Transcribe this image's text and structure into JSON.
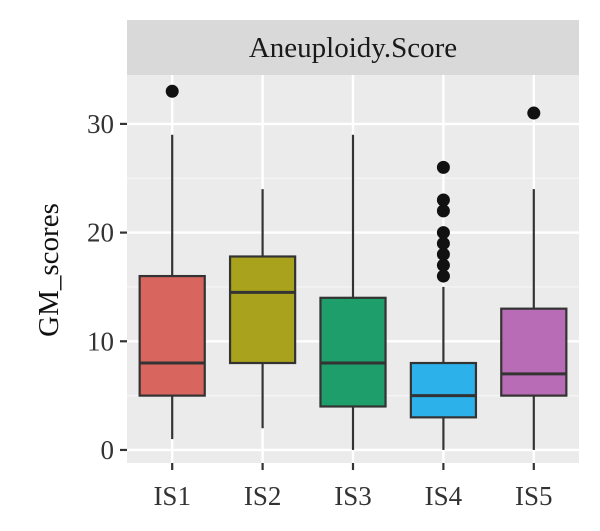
{
  "chart_data": {
    "type": "box",
    "facet_title": "Aneuploidy.Score",
    "ylabel": "GM_scores",
    "xlabel": "",
    "ylim": [
      -1.2,
      34.5
    ],
    "yticks": [
      0,
      10,
      20,
      30
    ],
    "grid": true,
    "categories": [
      "IS1",
      "IS2",
      "IS3",
      "IS4",
      "IS5"
    ],
    "colors": [
      "#D9665E",
      "#A8A21C",
      "#1E9E6A",
      "#2DB1EA",
      "#B86CB5"
    ],
    "boxes": [
      {
        "name": "IS1",
        "whisker_low": 1,
        "q1": 5,
        "median": 8,
        "q3": 16,
        "whisker_high": 29,
        "outliers": [
          33
        ]
      },
      {
        "name": "IS2",
        "whisker_low": 2,
        "q1": 8,
        "median": 14.5,
        "q3": 17.8,
        "whisker_high": 24,
        "outliers": []
      },
      {
        "name": "IS3",
        "whisker_low": 0,
        "q1": 4,
        "median": 8,
        "q3": 14,
        "whisker_high": 29,
        "outliers": []
      },
      {
        "name": "IS4",
        "whisker_low": 0,
        "q1": 3,
        "median": 5,
        "q3": 8,
        "whisker_high": 15,
        "outliers": [
          16,
          17,
          18,
          19,
          20,
          22,
          23,
          26
        ]
      },
      {
        "name": "IS5",
        "whisker_low": 0,
        "q1": 5,
        "median": 7,
        "q3": 13,
        "whisker_high": 24,
        "outliers": [
          31
        ]
      }
    ]
  }
}
